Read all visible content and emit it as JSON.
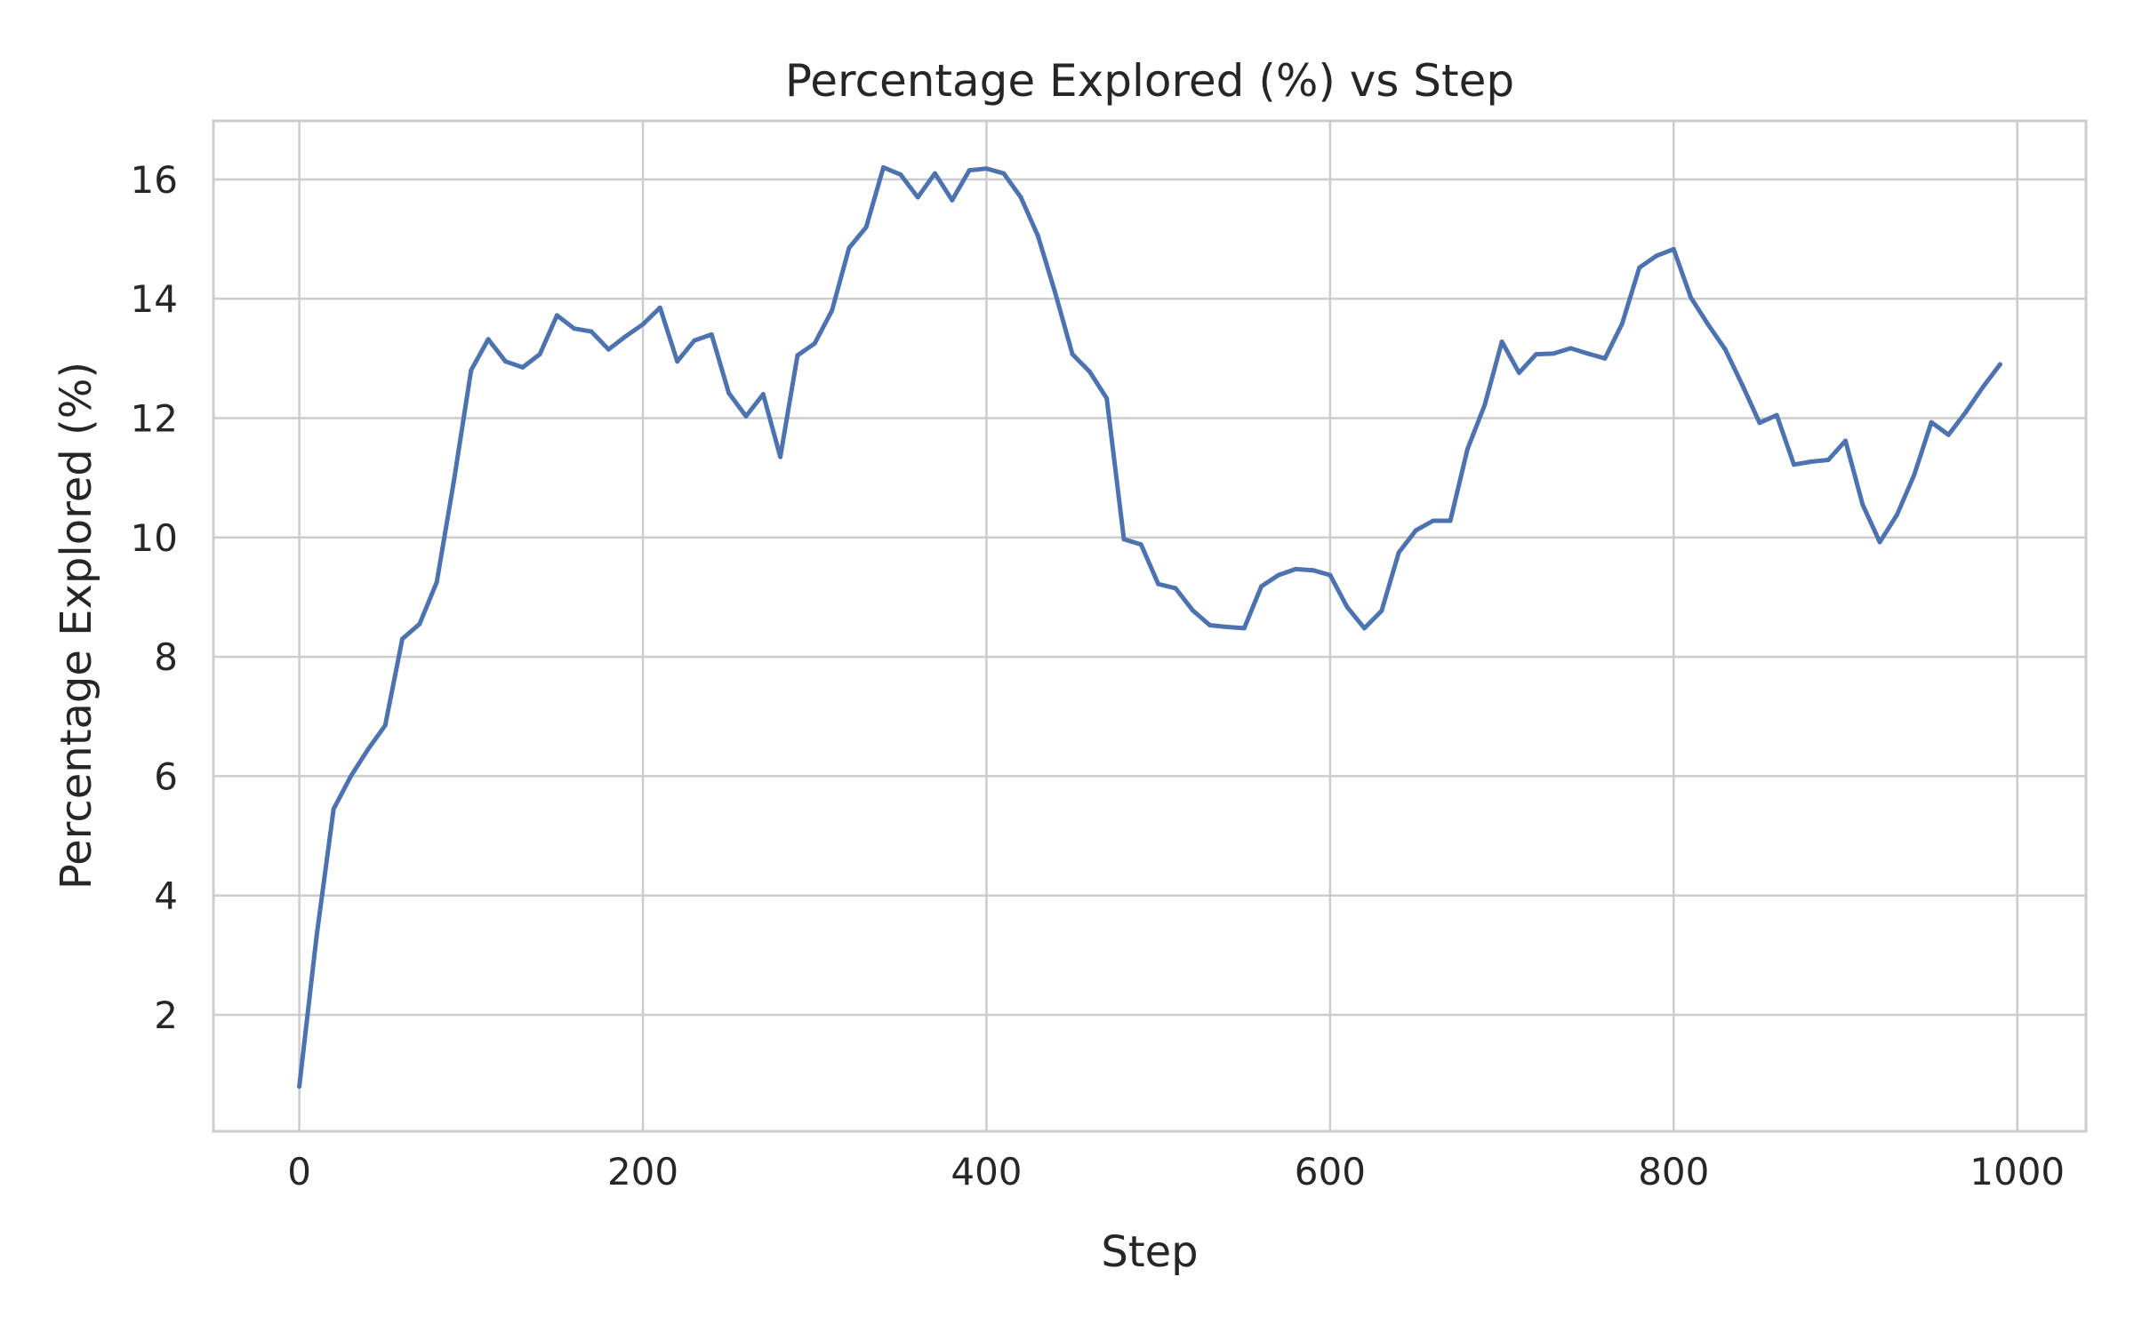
{
  "chart_data": {
    "type": "line",
    "title": "Percentage Explored (%) vs Step",
    "xlabel": "Step",
    "ylabel": "Percentage Explored (%)",
    "xlim": [
      -50,
      1040
    ],
    "ylim": [
      0.05,
      16.98
    ],
    "x_ticks": [
      0,
      200,
      400,
      600,
      800,
      1000
    ],
    "y_ticks": [
      2,
      4,
      6,
      8,
      10,
      12,
      14,
      16
    ],
    "grid": true,
    "legend": "none",
    "series": [
      {
        "color": "#4c72b0",
        "x": [
          0,
          10,
          20,
          30,
          40,
          50,
          60,
          70,
          80,
          90,
          100,
          110,
          120,
          130,
          140,
          150,
          160,
          170,
          180,
          190,
          200,
          210,
          220,
          230,
          240,
          250,
          260,
          270,
          280,
          290,
          300,
          310,
          320,
          330,
          340,
          350,
          360,
          370,
          380,
          390,
          400,
          410,
          420,
          430,
          440,
          450,
          460,
          470,
          480,
          490,
          500,
          510,
          520,
          530,
          540,
          550,
          560,
          570,
          580,
          590,
          600,
          610,
          620,
          630,
          640,
          650,
          660,
          670,
          680,
          690,
          700,
          710,
          720,
          730,
          740,
          750,
          760,
          770,
          780,
          790,
          800,
          810,
          820,
          830,
          840,
          850,
          860,
          870,
          880,
          890,
          900,
          910,
          920,
          930,
          940,
          950,
          960,
          970,
          980,
          990
        ],
        "values": [
          0.8,
          3.3,
          5.45,
          6.0,
          6.45,
          6.85,
          8.3,
          8.55,
          9.25,
          10.95,
          12.8,
          13.32,
          12.95,
          12.85,
          13.07,
          13.72,
          13.5,
          13.45,
          13.15,
          13.37,
          13.57,
          13.85,
          12.95,
          13.3,
          13.4,
          12.42,
          12.03,
          12.4,
          11.35,
          13.05,
          13.25,
          13.8,
          14.85,
          15.2,
          16.2,
          16.08,
          15.7,
          16.1,
          15.65,
          16.15,
          16.18,
          16.1,
          15.7,
          15.05,
          14.1,
          13.07,
          12.78,
          12.33,
          9.97,
          9.88,
          9.22,
          9.15,
          8.78,
          8.53,
          8.5,
          8.48,
          9.18,
          9.37,
          9.47,
          9.45,
          9.37,
          8.83,
          8.48,
          8.77,
          9.75,
          10.12,
          10.28,
          10.28,
          11.48,
          12.22,
          13.28,
          12.76,
          13.07,
          13.08,
          13.17,
          13.08,
          13.0,
          13.58,
          14.52,
          14.72,
          14.83,
          14.02,
          13.57,
          13.15,
          12.55,
          11.92,
          12.05,
          11.22,
          11.27,
          11.3,
          11.62,
          10.55,
          9.92,
          10.38,
          11.05,
          11.93,
          11.72,
          12.1,
          12.52,
          12.9
        ]
      }
    ]
  }
}
